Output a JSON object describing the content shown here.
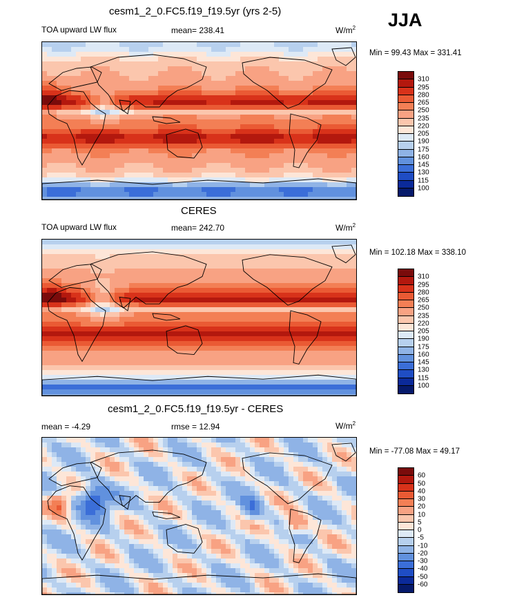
{
  "season": "JJA",
  "panels": [
    {
      "title": "cesm1_2_0.FC5.f19_f19.5yr (yrs 2-5)",
      "left_text": "TOA upward LW flux",
      "center_text": "mean= 238.41",
      "units_base": "W/m",
      "units_sup": "2",
      "minmax": "Min =  99.43 Max = 331.41",
      "colorbar_labels": [
        "310",
        "295",
        "280",
        "265",
        "250",
        "235",
        "220",
        "205",
        "190",
        "175",
        "160",
        "145",
        "130",
        "115",
        "100"
      ],
      "colors": [
        "#7a0b0b",
        "#b3180e",
        "#d8321a",
        "#ea5a34",
        "#f37f55",
        "#f8a283",
        "#fbc6ad",
        "#fde6d8",
        "#dde9f6",
        "#b7d0ee",
        "#8fb3e6",
        "#6191de",
        "#3b6ed8",
        "#1f4dc4",
        "#0b2a9a",
        "#061a6b"
      ]
    },
    {
      "title": "CERES",
      "left_text": "TOA upward LW flux",
      "center_text": "mean= 242.70",
      "units_base": "W/m",
      "units_sup": "2",
      "minmax": "Min = 102.18 Max = 338.10",
      "colorbar_labels": [
        "310",
        "295",
        "280",
        "265",
        "250",
        "235",
        "220",
        "205",
        "190",
        "175",
        "160",
        "145",
        "130",
        "115",
        "100"
      ],
      "colors": [
        "#7a0b0b",
        "#b3180e",
        "#d8321a",
        "#ea5a34",
        "#f37f55",
        "#f8a283",
        "#fbc6ad",
        "#fde6d8",
        "#dde9f6",
        "#b7d0ee",
        "#8fb3e6",
        "#6191de",
        "#3b6ed8",
        "#1f4dc4",
        "#0b2a9a",
        "#061a6b"
      ]
    },
    {
      "title": "cesm1_2_0.FC5.f19_f19.5yr - CERES",
      "left_text": "mean =  -4.29",
      "center_text": "rmse =  12.94",
      "units_base": "W/m",
      "units_sup": "2",
      "minmax": "Min = -77.08 Max =  49.17",
      "colorbar_labels": [
        "60",
        "50",
        "40",
        "30",
        "20",
        "10",
        "5",
        "0",
        "-5",
        "-10",
        "-20",
        "-30",
        "-40",
        "-50",
        "-60"
      ],
      "colors": [
        "#7a0b0b",
        "#b3180e",
        "#d8321a",
        "#ea5a34",
        "#f37f55",
        "#f8a283",
        "#fbc6ad",
        "#fde6d8",
        "#dde9f6",
        "#b7d0ee",
        "#8fb3e6",
        "#6191de",
        "#3b6ed8",
        "#1f4dc4",
        "#0b2a9a",
        "#061a6b"
      ]
    }
  ]
}
